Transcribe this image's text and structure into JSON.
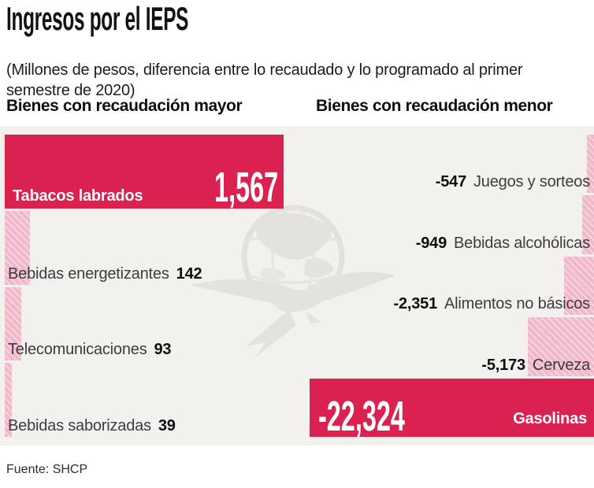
{
  "header": {
    "title": "Ingresos por el IEPS",
    "subtitle": "(Millones de pesos, diferencia entre lo recaudado y lo programado al primer semestre de 2020)"
  },
  "footer": {
    "source": "Fuente: SHCP"
  },
  "colors": {
    "accent_crimson": "#da214f",
    "bar_pink": "#f0b8ca",
    "bar_pink_stripe": "#f7d6e0",
    "chart_background": "#f2f1ee",
    "watermark_gray": "#e3e2de",
    "text_dark": "#0d0d0d",
    "text_gray": "#3c3c3c"
  },
  "chart_data": {
    "type": "bar",
    "orientation": "horizontal",
    "title": "Ingresos por el IEPS",
    "subtitle": "(Millones de pesos, diferencia entre lo recaudado y lo programado al primer semestre de 2020)",
    "unit": "Millones de pesos",
    "source": "Fuente: SHCP",
    "legend_position": "none",
    "grid": false,
    "groups": [
      {
        "heading": "Bienes con recaudación mayor",
        "side": "left",
        "items": [
          {
            "label": "Tabacos labrados",
            "value": 1567,
            "display": "1,567"
          },
          {
            "label": "Bebidas energetizantes",
            "value": 142,
            "display": "142"
          },
          {
            "label": "Telecomunicaciones",
            "value": 93,
            "display": "93"
          },
          {
            "label": "Bebidas saborizadas",
            "value": 39,
            "display": "39"
          }
        ]
      },
      {
        "heading": "Bienes con recaudación menor",
        "side": "right",
        "items": [
          {
            "label": "Juegos y sorteos",
            "value": -547,
            "display": "-547"
          },
          {
            "label": "Bebidas alcohólicas",
            "value": -949,
            "display": "-949"
          },
          {
            "label": "Alimentos no básicos",
            "value": -2351,
            "display": "-2,351"
          },
          {
            "label": "Cerveza",
            "value": -5173,
            "display": "-5,173"
          },
          {
            "label": "Gasolinas",
            "value": -22324,
            "display": "-22,324"
          }
        ]
      }
    ]
  }
}
